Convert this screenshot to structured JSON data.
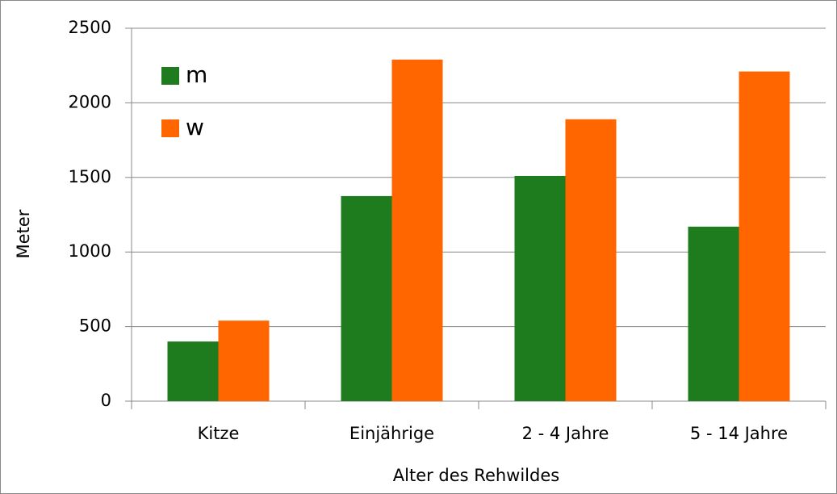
{
  "chart_data": {
    "type": "bar",
    "x_label": "Alter des Rehwildes",
    "y_label": "Meter",
    "categories": [
      "Kitze",
      "Einjährige",
      "2 - 4 Jahre",
      "5 - 14 Jahre"
    ],
    "series": [
      {
        "name": "m",
        "color": "#1e7b1e",
        "values": [
          400,
          1375,
          1510,
          1170
        ]
      },
      {
        "name": "w",
        "color": "#ff6600",
        "values": [
          540,
          2290,
          1890,
          2210
        ]
      }
    ],
    "ylim": [
      0,
      2500
    ],
    "yticks": [
      0,
      500,
      1000,
      1500,
      2000,
      2500
    ],
    "grid": true,
    "legend": "top-left"
  }
}
